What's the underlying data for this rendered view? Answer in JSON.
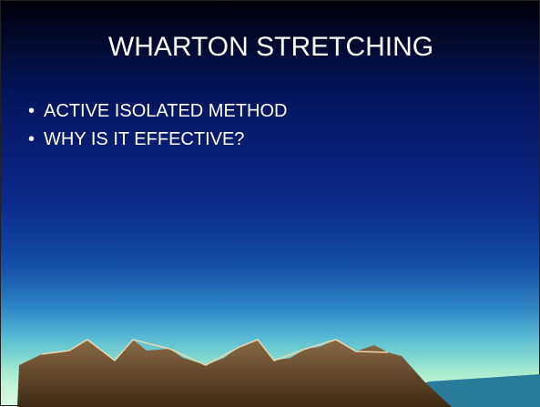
{
  "slide": {
    "title": "WHARTON STRETCHING",
    "bullets": [
      "ACTIVE ISOLATED METHOD",
      "WHY IS IT EFFECTIVE?"
    ]
  }
}
